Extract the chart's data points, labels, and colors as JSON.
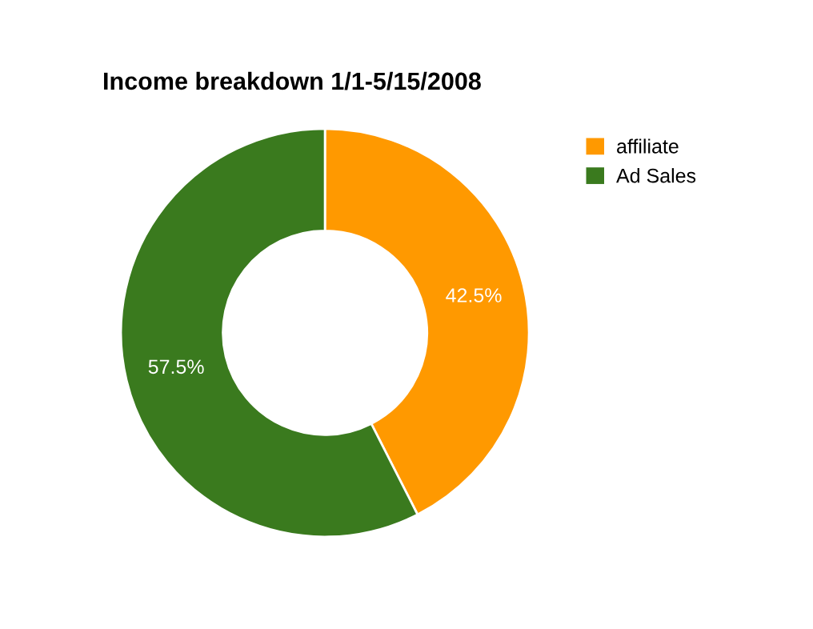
{
  "chart_data": {
    "type": "donut",
    "title": "Income breakdown 1/1-5/15/2008",
    "categories": [
      "affiliate",
      "Ad Sales"
    ],
    "values": [
      42.5,
      57.5
    ],
    "value_labels": [
      "42.5%",
      "57.5%"
    ],
    "colors": [
      "#ff9900",
      "#3a7a1e"
    ],
    "legend": "top right"
  }
}
